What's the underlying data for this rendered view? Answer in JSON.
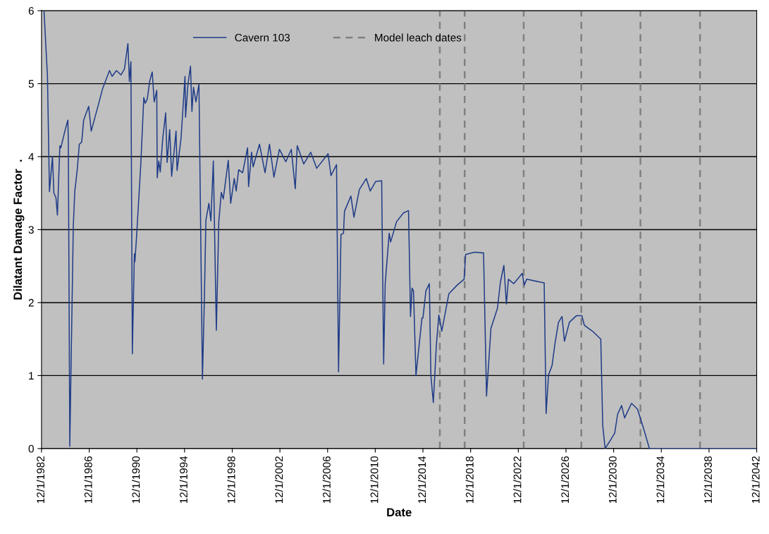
{
  "chart_data": {
    "type": "line",
    "xlabel": "Date",
    "ylabel": "Dilatant Damage Factor  .",
    "xlim": [
      "1982-12-01",
      "2042-12-01"
    ],
    "ylim": [
      0,
      6
    ],
    "yticks": [
      0,
      1,
      2,
      3,
      4,
      5,
      6
    ],
    "xticks": [
      {
        "value": "1982-12-01",
        "label": "12/1/1982"
      },
      {
        "value": "1986-12-01",
        "label": "12/1/1986"
      },
      {
        "value": "1990-12-01",
        "label": "12/1/1990"
      },
      {
        "value": "1994-12-01",
        "label": "12/1/1994"
      },
      {
        "value": "1998-12-01",
        "label": "12/1/1998"
      },
      {
        "value": "2002-12-01",
        "label": "12/1/2002"
      },
      {
        "value": "2006-12-01",
        "label": "12/1/2006"
      },
      {
        "value": "2010-12-01",
        "label": "12/1/2010"
      },
      {
        "value": "2014-12-01",
        "label": "12/1/2014"
      },
      {
        "value": "2018-12-01",
        "label": "12/1/2018"
      },
      {
        "value": "2022-12-01",
        "label": "12/1/2022"
      },
      {
        "value": "2026-12-01",
        "label": "12/1/2026"
      },
      {
        "value": "2030-12-01",
        "label": "12/1/2030"
      },
      {
        "value": "2034-12-01",
        "label": "12/1/2034"
      },
      {
        "value": "2038-12-01",
        "label": "12/1/2038"
      },
      {
        "value": "2042-12-01",
        "label": "12/1/2042"
      }
    ],
    "grid": "y",
    "legend": "top",
    "marker": "none",
    "line_style": "solid",
    "series": [
      {
        "name": "Cavern 103",
        "color": "#1f3c88",
        "x": [
          "1983-02-15",
          "1983-06-01",
          "1983-08-01",
          "1983-11-01",
          "1983-12-15",
          "1984-02-15",
          "1984-04-01",
          "1984-06-15",
          "1984-07-15",
          "1984-11-15",
          "1985-02-15",
          "1985-03-01",
          "1985-04-15",
          "1985-08-01",
          "1985-09-15",
          "1985-12-01",
          "1986-02-01",
          "1986-04-15",
          "1986-06-15",
          "1986-11-15",
          "1987-02-01",
          "1987-09-01",
          "1988-01-15",
          "1988-08-15",
          "1988-11-01",
          "1989-03-15",
          "1989-08-01",
          "1989-11-15",
          "1990-03-01",
          "1990-04-15",
          "1990-06-01",
          "1990-07-15",
          "1990-09-15",
          "1990-10-01",
          "1990-11-15",
          "1991-04-01",
          "1991-07-01",
          "1991-08-15",
          "1991-10-15",
          "1992-01-01",
          "1992-03-15",
          "1992-05-15",
          "1992-08-01",
          "1992-08-15",
          "1992-10-01",
          "1992-11-15",
          "1993-02-01",
          "1993-05-01",
          "1993-06-15",
          "1993-09-01",
          "1993-11-01",
          "1994-03-15",
          "1994-04-15",
          "1994-08-15",
          "1994-12-15",
          "1995-01-01",
          "1995-03-15",
          "1995-06-01",
          "1995-07-15",
          "1995-09-01",
          "1995-11-15",
          "1996-02-15",
          "1996-06-01",
          "1996-08-01",
          "1996-09-15",
          "1996-12-15",
          "1997-02-15",
          "1997-05-01",
          "1997-08-01",
          "1997-10-15",
          "1998-01-01",
          "1998-03-01",
          "1998-08-01",
          "1998-10-15",
          "1999-02-01",
          "1999-04-01",
          "1999-06-15",
          "1999-10-15",
          "2000-03-15",
          "2000-04-15",
          "2000-07-15",
          "2000-09-01",
          "2001-03-15",
          "2001-09-01",
          "2002-01-15",
          "2002-06-01",
          "2002-11-15",
          "2003-06-01",
          "2003-11-15",
          "2004-03-15",
          "2004-05-15",
          "2004-12-01",
          "2005-07-01",
          "2006-01-01",
          "2006-12-15",
          "2007-03-15",
          "2007-09-01",
          "2007-11-01",
          "2008-01-15",
          "2008-04-01",
          "2008-05-01",
          "2008-11-15",
          "2009-02-15",
          "2009-08-01",
          "2010-03-01",
          "2010-07-01",
          "2010-12-15",
          "2011-06-15",
          "2011-08-15",
          "2011-10-01",
          "2012-02-01",
          "2012-03-15",
          "2012-09-15",
          "2013-04-15",
          "2013-09-15",
          "2013-11-15",
          "2014-01-01",
          "2014-02-15",
          "2014-05-01",
          "2014-11-01",
          "2014-12-01",
          "2015-03-01",
          "2015-06-15",
          "2015-08-01",
          "2015-10-15",
          "2016-01-15",
          "2016-04-01",
          "2016-07-01",
          "2017-02-01",
          "2017-10-15",
          "2018-05-15",
          "2018-07-01",
          "2019-04-01",
          "2020-01-01",
          "2020-04-01",
          "2020-08-15",
          "2021-03-01",
          "2021-06-01",
          "2021-09-15",
          "2021-12-01",
          "2022-02-01",
          "2022-07-15",
          "2023-04-01",
          "2023-06-01",
          "2023-08-15",
          "2025-02-01",
          "2025-04-01",
          "2025-06-15",
          "2025-10-01",
          "2026-01-01",
          "2026-04-15",
          "2026-08-01",
          "2026-10-15",
          "2027-03-15",
          "2027-10-15",
          "2028-04-01",
          "2028-06-15",
          "2029-02-15",
          "2029-11-01",
          "2030-01-01",
          "2030-03-15",
          "2030-09-15",
          "2031-01-01",
          "2031-04-01",
          "2031-08-01",
          "2031-11-01",
          "2032-06-01",
          "2032-12-01",
          "2033-06-15",
          "2033-12-01",
          "2042-11-15"
        ],
        "values": [
          6.0,
          5.1,
          3.52,
          4.0,
          3.5,
          3.44,
          3.2,
          4.15,
          4.12,
          4.35,
          4.5,
          4.2,
          0.03,
          3.05,
          3.52,
          3.83,
          4.17,
          4.2,
          4.5,
          4.69,
          4.35,
          4.7,
          4.93,
          5.18,
          5.1,
          5.18,
          5.12,
          5.2,
          5.55,
          5.03,
          5.3,
          1.3,
          2.67,
          2.56,
          2.86,
          3.9,
          4.81,
          4.73,
          4.79,
          5.04,
          5.16,
          4.75,
          4.91,
          3.71,
          3.94,
          3.79,
          4.25,
          4.6,
          3.92,
          4.37,
          3.73,
          4.35,
          3.81,
          4.25,
          5.1,
          4.54,
          4.99,
          5.24,
          4.62,
          4.95,
          4.75,
          4.99,
          0.95,
          2.09,
          3.13,
          3.36,
          3.12,
          3.94,
          1.62,
          3.11,
          3.51,
          3.42,
          3.95,
          3.36,
          3.7,
          3.53,
          3.82,
          3.78,
          4.12,
          3.59,
          4.06,
          3.86,
          4.17,
          3.78,
          4.17,
          3.72,
          4.1,
          3.93,
          4.1,
          3.56,
          4.15,
          3.9,
          4.06,
          3.84,
          4.04,
          3.74,
          3.89,
          1.05,
          2.93,
          2.95,
          3.25,
          3.46,
          3.17,
          3.55,
          3.7,
          3.53,
          3.66,
          3.67,
          1.16,
          2.26,
          2.95,
          2.83,
          3.11,
          3.23,
          3.26,
          1.81,
          2.2,
          2.16,
          1.0,
          1.79,
          1.79,
          2.16,
          2.26,
          1.0,
          0.63,
          1.41,
          1.83,
          1.61,
          2.12,
          2.24,
          2.32,
          2.66,
          2.69,
          2.68,
          0.72,
          1.65,
          1.92,
          2.28,
          2.51,
          1.98,
          2.32,
          2.26,
          2.4,
          2.24,
          2.32,
          2.27,
          0.48,
          1.01,
          1.14,
          1.45,
          1.73,
          1.81,
          1.47,
          1.73,
          1.82,
          1.82,
          1.69,
          1.61,
          1.5,
          0.31,
          0.0,
          0.13,
          0.21,
          0.47,
          0.59,
          0.42,
          0.62,
          0.54,
          0.26,
          0.0,
          0.0
        ]
      }
    ],
    "ref_lines": [
      {
        "axis": "x",
        "value": "2016-05-01",
        "label": "Model leach dates",
        "color": "#808080",
        "line_style": "dashed"
      },
      {
        "axis": "x",
        "value": "2018-06-01",
        "color": "#808080",
        "line_style": "dashed"
      },
      {
        "axis": "x",
        "value": "2023-05-15",
        "color": "#808080",
        "line_style": "dashed"
      },
      {
        "axis": "x",
        "value": "2028-03-15",
        "color": "#808080",
        "line_style": "dashed"
      },
      {
        "axis": "x",
        "value": "2033-03-01",
        "color": "#808080",
        "line_style": "dashed"
      },
      {
        "axis": "x",
        "value": "2038-03-01",
        "color": "#808080",
        "line_style": "dashed"
      }
    ]
  }
}
